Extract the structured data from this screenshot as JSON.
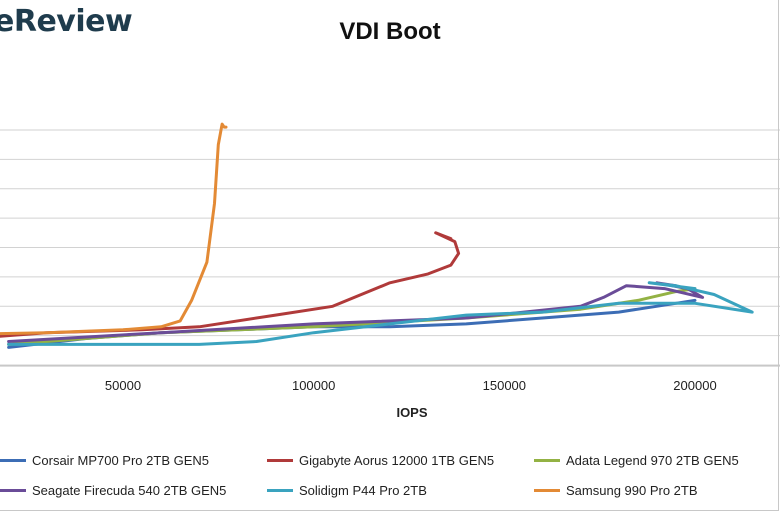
{
  "header": {
    "logo_text": "eReview",
    "title": "VDI Boot"
  },
  "chart_data": {
    "type": "line",
    "title": "VDI Boot",
    "xlabel": "IOPS",
    "ylabel": "",
    "xlim": [
      -10000,
      230000
    ],
    "ylim": [
      0.28,
      1.2
    ],
    "x_ticks": [
      50000,
      100000,
      150000,
      200000
    ],
    "x_tick_labels": [
      "50000",
      "100000",
      "150000",
      "200000"
    ],
    "y_gridlines": [
      0.3,
      0.4,
      0.5,
      0.6,
      0.7,
      0.8,
      0.9,
      1.0,
      1.1
    ],
    "grid": true,
    "legend_position": "bottom",
    "series": [
      {
        "name": "Corsair MP700 Pro 2TB GEN5",
        "color": "#3c6db5",
        "x": [
          20000,
          40000,
          60000,
          80000,
          100000,
          120000,
          140000,
          160000,
          180000,
          195000,
          200000
        ],
        "y": [
          0.36,
          0.39,
          0.41,
          0.42,
          0.43,
          0.43,
          0.44,
          0.46,
          0.48,
          0.51,
          0.52
        ]
      },
      {
        "name": "Gigabyte Aorus 12000 1TB GEN5",
        "color": "#b03a3a",
        "x": [
          -10000,
          30000,
          55000,
          70000,
          90000,
          105000,
          120000,
          130000,
          136000,
          138000,
          137000,
          132000,
          134000,
          136000
        ],
        "y": [
          0.37,
          0.41,
          0.42,
          0.43,
          0.47,
          0.5,
          0.58,
          0.61,
          0.64,
          0.68,
          0.72,
          0.75,
          0.74,
          0.73
        ]
      },
      {
        "name": "Adata Legend 970 2TB GEN5",
        "color": "#93b244",
        "x": [
          20000,
          60000,
          100000,
          140000,
          170000,
          185000,
          195000,
          200000
        ],
        "y": [
          0.37,
          0.41,
          0.43,
          0.46,
          0.49,
          0.52,
          0.55,
          0.56
        ]
      },
      {
        "name": "Seagate Firecuda 540 2TB GEN5",
        "color": "#6a4c98",
        "x": [
          20000,
          60000,
          100000,
          140000,
          170000,
          176000,
          182000,
          192000,
          202000,
          198000,
          190000,
          195000
        ],
        "y": [
          0.38,
          0.41,
          0.44,
          0.46,
          0.5,
          0.53,
          0.57,
          0.56,
          0.53,
          0.56,
          0.58,
          0.57
        ]
      },
      {
        "name": "Solidigm P44 Pro 2TB",
        "color": "#3aa3bf",
        "x": [
          20000,
          50000,
          70000,
          85000,
          100000,
          120000,
          140000,
          160000,
          180000,
          200000,
          215000,
          205000,
          195000,
          188000,
          200000
        ],
        "y": [
          0.37,
          0.37,
          0.37,
          0.38,
          0.41,
          0.44,
          0.47,
          0.48,
          0.51,
          0.51,
          0.48,
          0.54,
          0.57,
          0.58,
          0.56
        ]
      },
      {
        "name": "Samsung 990 Pro 2TB",
        "color": "#e38a35",
        "x": [
          -10000,
          30000,
          50000,
          60000,
          65000,
          68000,
          72000,
          74000,
          75000,
          76000,
          76500,
          77000
        ],
        "y": [
          0.4,
          0.41,
          0.42,
          0.43,
          0.45,
          0.52,
          0.65,
          0.85,
          1.05,
          1.12,
          1.11,
          1.11
        ]
      }
    ]
  }
}
